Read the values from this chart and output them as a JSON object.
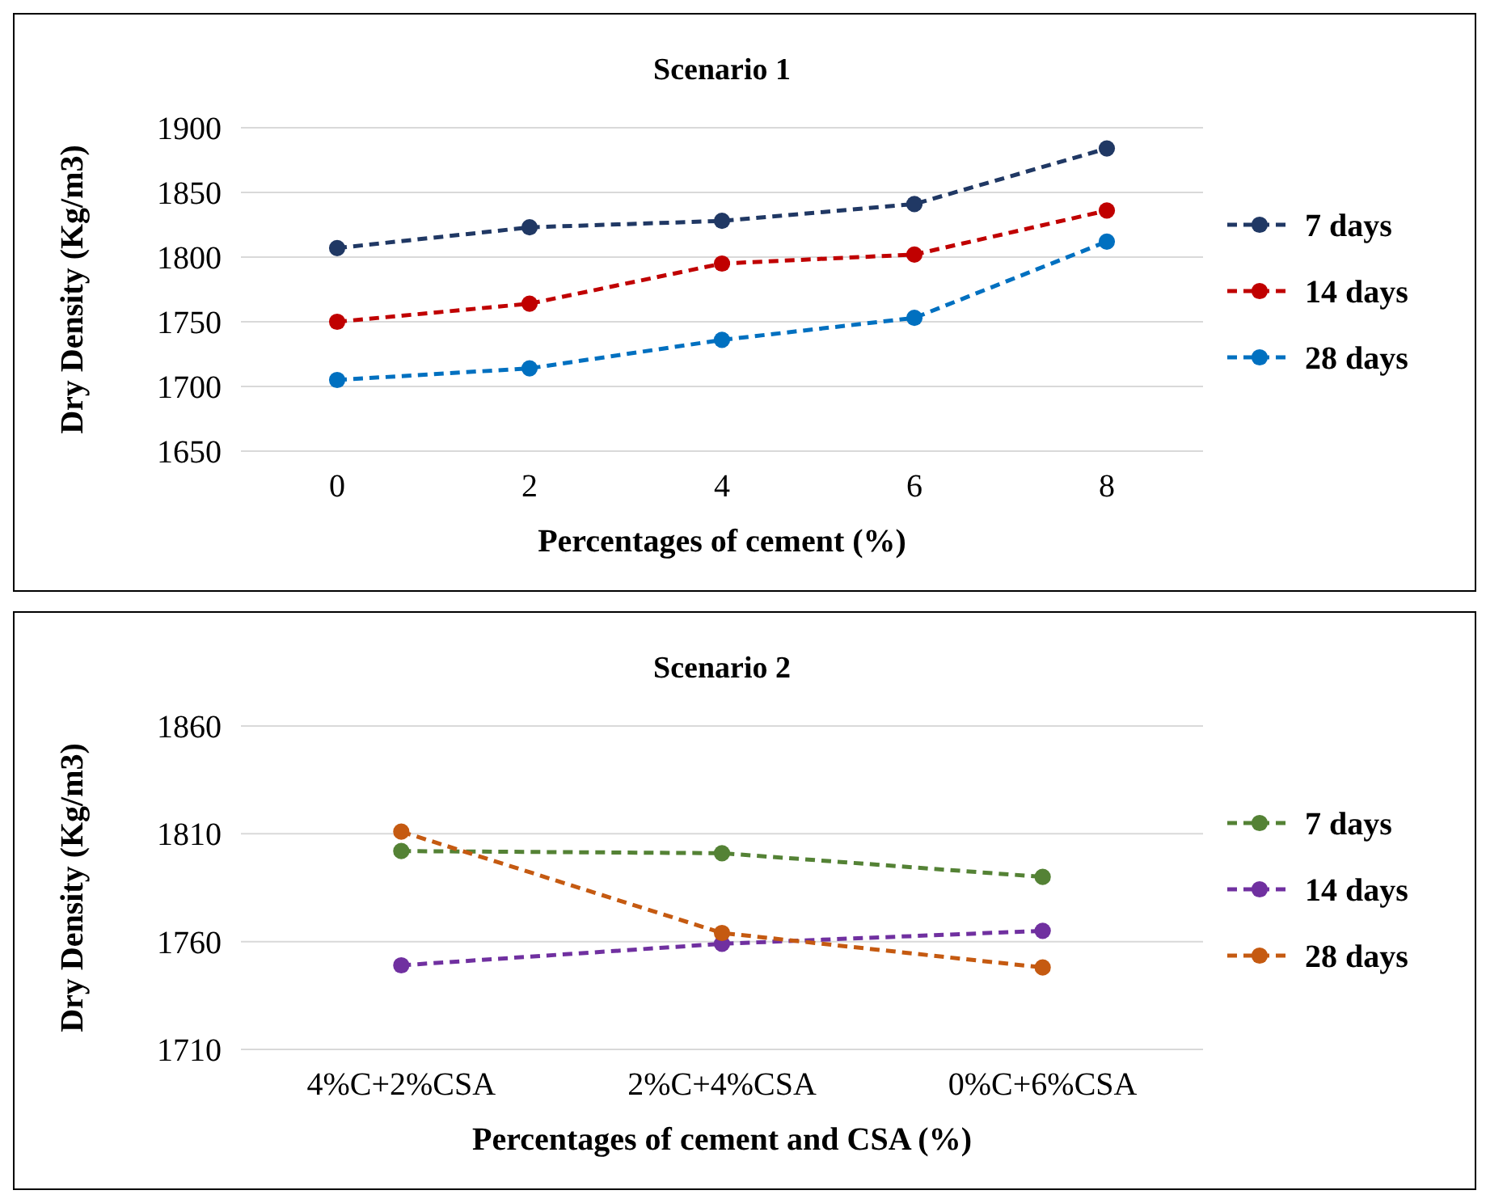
{
  "chart_data": [
    {
      "type": "line",
      "title": "Scenario 1",
      "xlabel": "Percentages of cement (%)",
      "ylabel": "Dry Density (Kg/m3)",
      "categories": [
        "0",
        "2",
        "4",
        "6",
        "8"
      ],
      "ylim": [
        1650,
        1900
      ],
      "yticks": [
        1650,
        1700,
        1750,
        1800,
        1850,
        1900
      ],
      "grid": "y",
      "legend": "right",
      "marker": "circle",
      "line_style": "dashed",
      "series": [
        {
          "name": "7 days",
          "color": "#203864",
          "values": [
            1807,
            1823,
            1828,
            1841,
            1884
          ]
        },
        {
          "name": "14 days",
          "color": "#c00000",
          "values": [
            1750,
            1764,
            1795,
            1802,
            1836
          ]
        },
        {
          "name": "28 days",
          "color": "#0070c0",
          "values": [
            1705,
            1714,
            1736,
            1753,
            1812
          ]
        }
      ]
    },
    {
      "type": "line",
      "title": "Scenario 2",
      "xlabel": "Percentages of cement  and CSA (%)",
      "ylabel": "Dry Density (Kg/m3)",
      "categories": [
        "4%C+2%CSA",
        "2%C+4%CSA",
        "0%C+6%CSA"
      ],
      "ylim": [
        1710,
        1860
      ],
      "yticks": [
        1710,
        1760,
        1810,
        1860
      ],
      "grid": "y",
      "legend": "right",
      "marker": "circle",
      "line_style": "dashed",
      "series": [
        {
          "name": "7 days",
          "color": "#548235",
          "values": [
            1802,
            1801,
            1790
          ]
        },
        {
          "name": "14 days",
          "color": "#7030a0",
          "values": [
            1749,
            1759,
            1765
          ]
        },
        {
          "name": "28 days",
          "color": "#c55a11",
          "values": [
            1811,
            1764,
            1748
          ]
        }
      ]
    }
  ]
}
